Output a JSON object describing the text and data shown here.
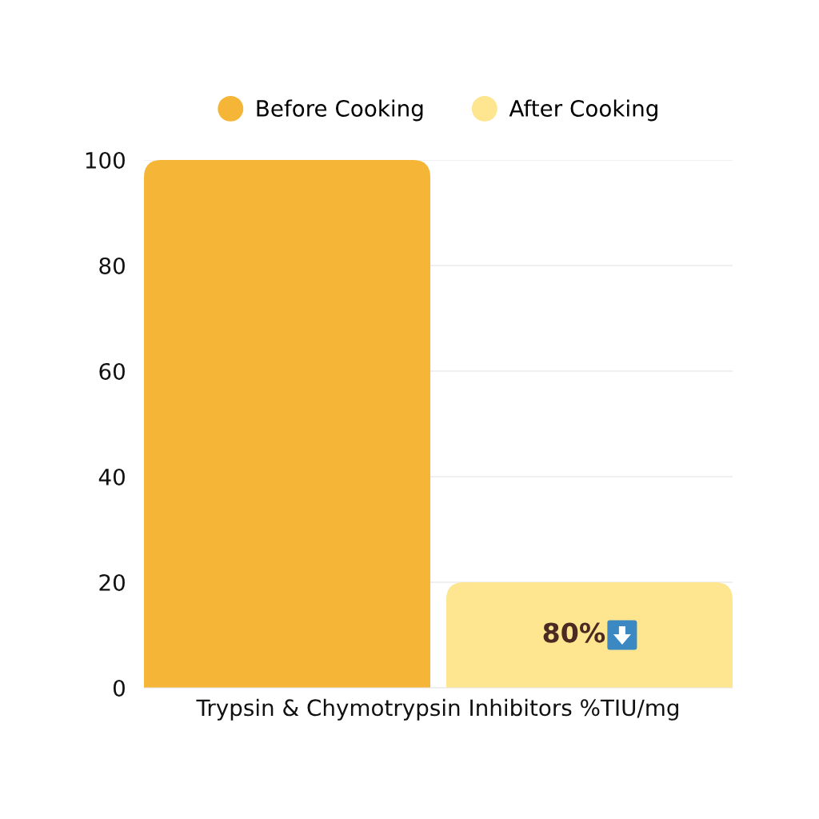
{
  "chart_data": {
    "type": "bar",
    "categories": [
      "Trypsin & Chymotrypsin Inhibitors %TIU/mg"
    ],
    "series": [
      {
        "name": "Before Cooking",
        "color": "#f5b638",
        "values": [
          100
        ]
      },
      {
        "name": "After Cooking",
        "color": "#fde68f",
        "values": [
          20
        ]
      }
    ],
    "ylim": [
      0,
      100
    ],
    "yticks": [
      0,
      20,
      40,
      60,
      80,
      100
    ],
    "grid": "y",
    "legend": "top",
    "annotations": [
      "80%"
    ]
  }
}
